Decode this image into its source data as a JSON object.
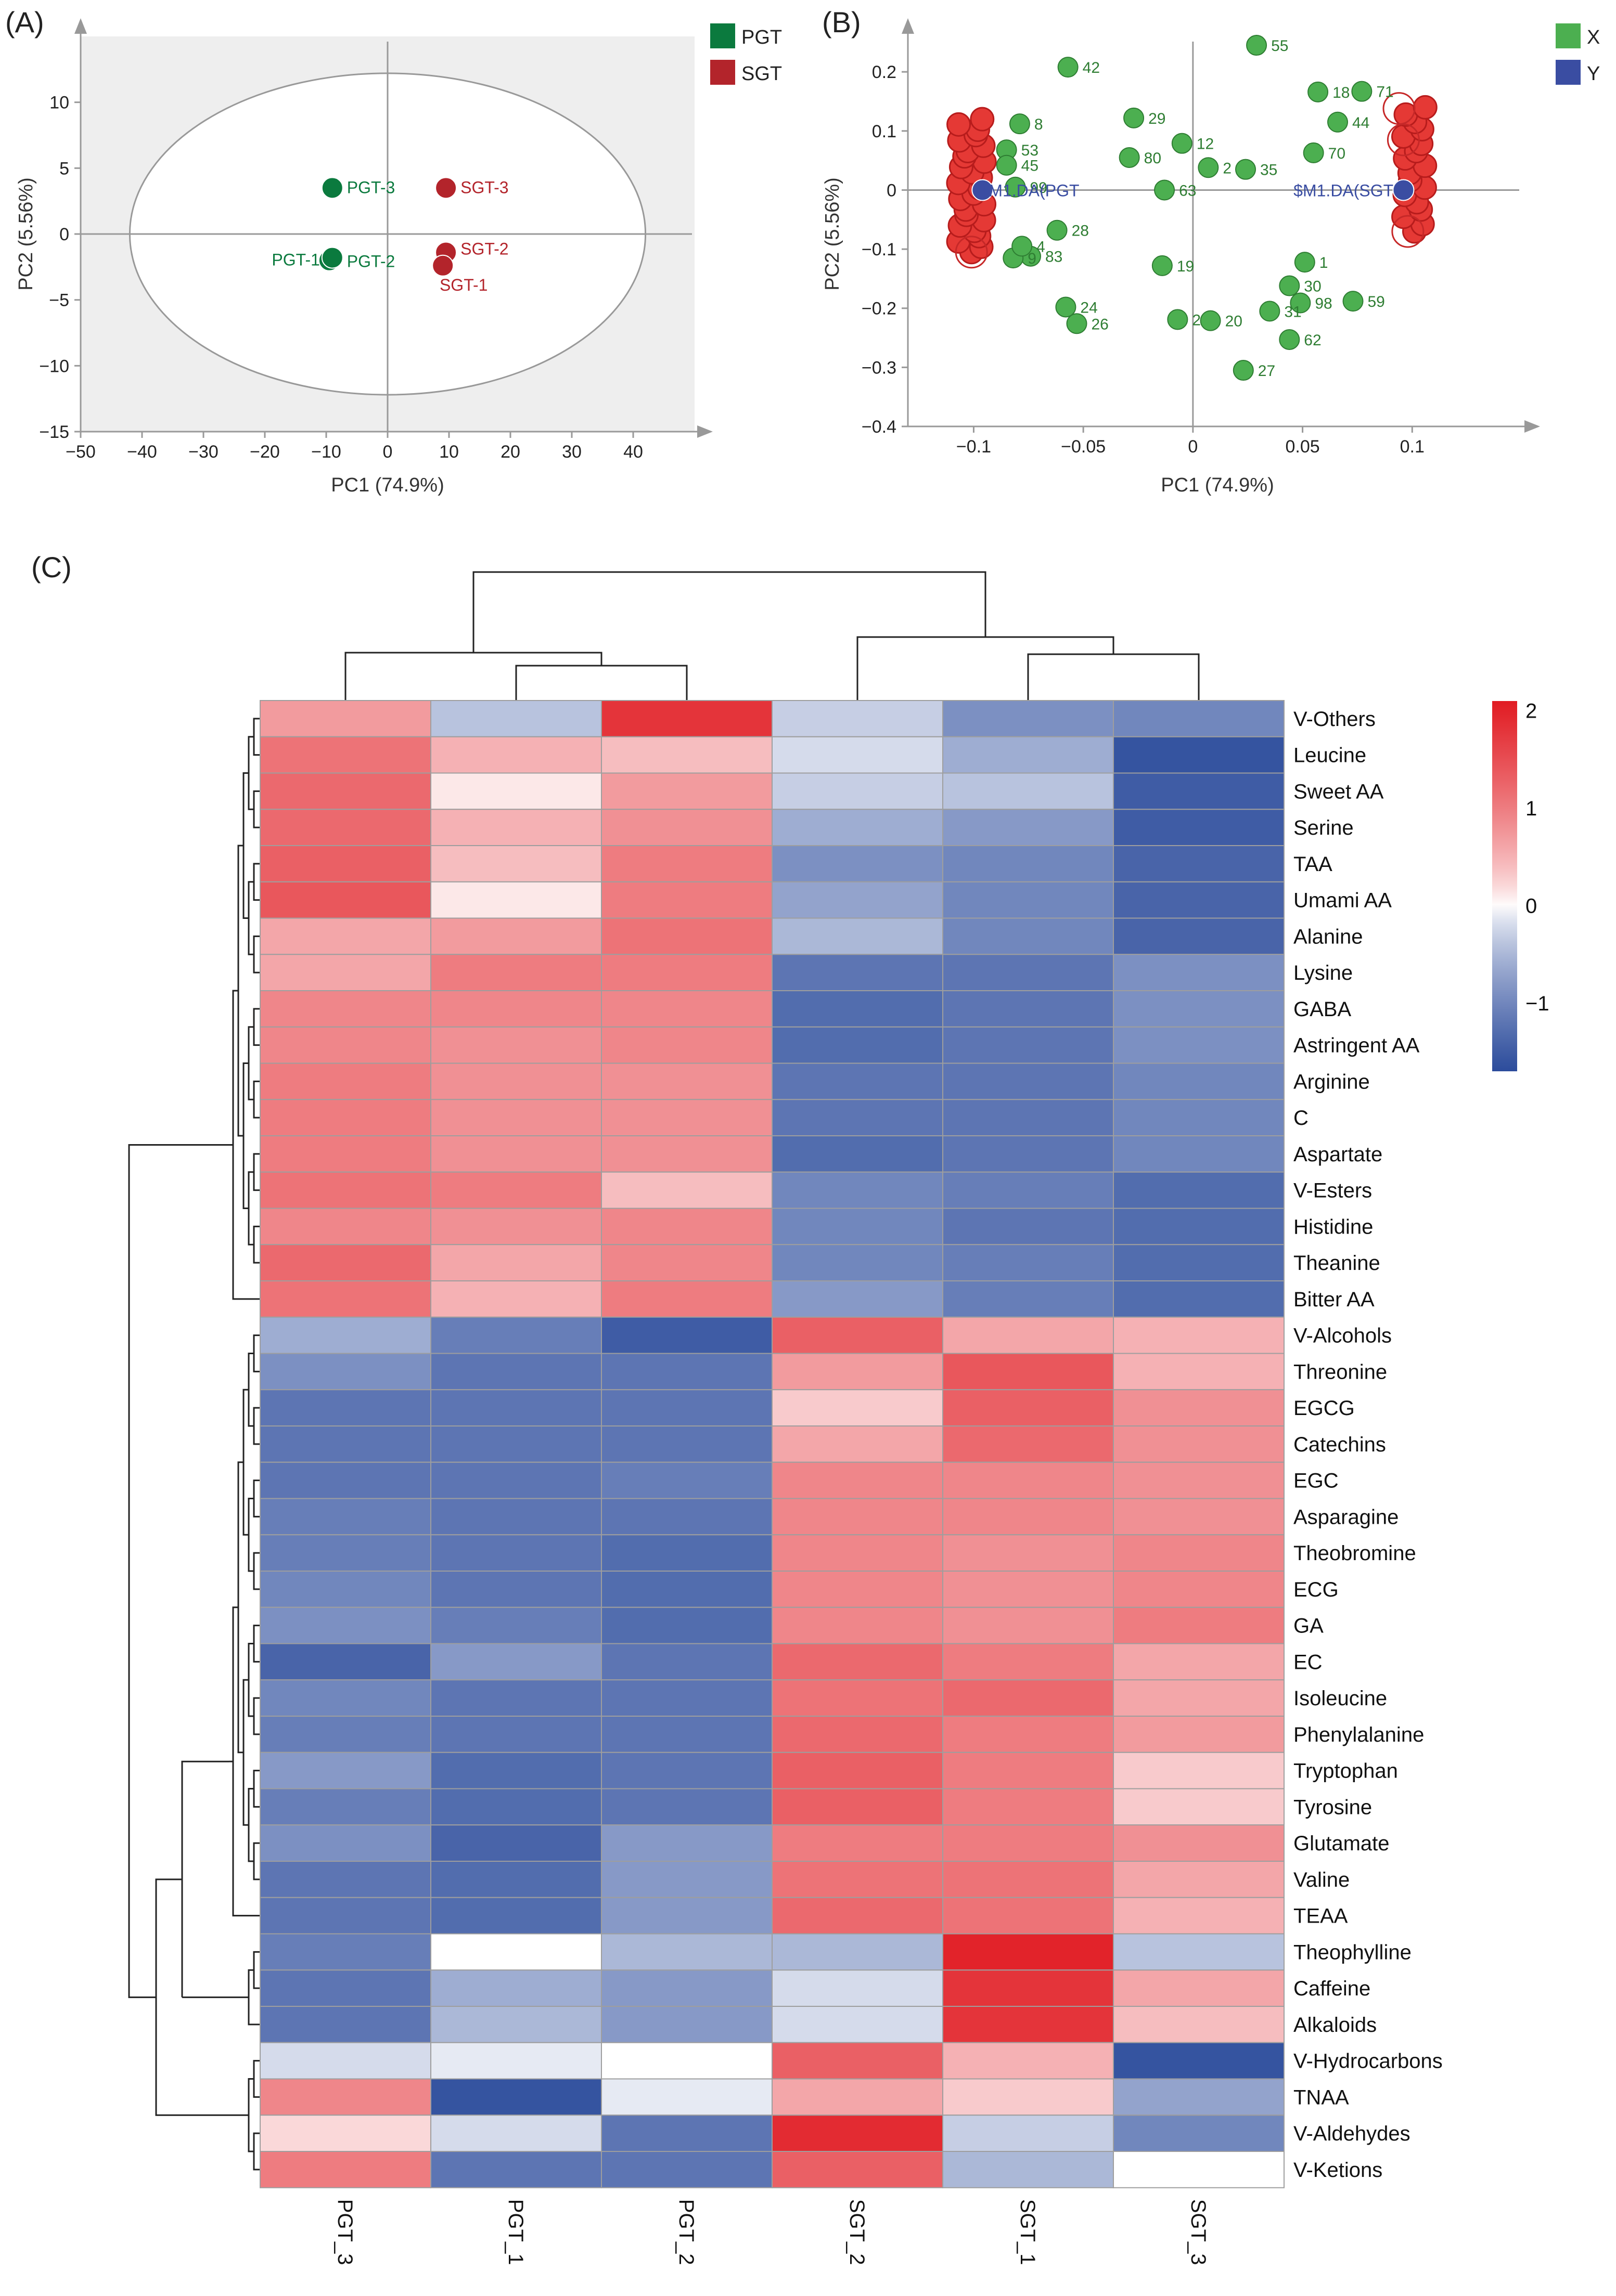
{
  "panel_labels": {
    "a": "(A)",
    "b": "(B)",
    "c": "(C)"
  },
  "colors": {
    "pgt": "#0b7a3e",
    "sgt": "#b3242b",
    "x_group": "#4caf50",
    "y_group": "#3a4da2",
    "axis": "#999999",
    "panel_bg": "#eeeeee",
    "heat_low": "#2c4c9c",
    "heat_mid": "#ffffff",
    "heat_high": "#e11b22"
  },
  "chart_data": [
    {
      "id": "A",
      "type": "scatter",
      "title": "",
      "xlabel": "PC1 (74.9%)",
      "ylabel": "PC2 (5.56%)",
      "xlim": [
        -50,
        50
      ],
      "ylim": [
        -15,
        15
      ],
      "xticks": [
        -50,
        -40,
        -30,
        -20,
        -10,
        0,
        10,
        20,
        30,
        40
      ],
      "yticks": [
        -15,
        -10,
        -5,
        0,
        5,
        10
      ],
      "grid": false,
      "legend": {
        "position": "right",
        "entries": [
          {
            "name": "PGT",
            "color": "#0b7a3e"
          },
          {
            "name": "SGT",
            "color": "#b3242b"
          }
        ]
      },
      "ellipse": {
        "cx": 0,
        "cy": 0,
        "rx": 42,
        "ry": 12.2
      },
      "points": [
        {
          "label": "PGT-3",
          "group": "PGT",
          "x": -9,
          "y": 3.5
        },
        {
          "label": "PGT-1",
          "group": "PGT",
          "x": -9.5,
          "y": -2
        },
        {
          "label": "PGT-2",
          "group": "PGT",
          "x": -9,
          "y": -1.8
        },
        {
          "label": "SGT-3",
          "group": "SGT",
          "x": 9.5,
          "y": 3.5
        },
        {
          "label": "SGT-2",
          "group": "SGT",
          "x": 9.5,
          "y": -1.4
        },
        {
          "label": "SGT-1",
          "group": "SGT",
          "x": 9,
          "y": -2.4
        }
      ]
    },
    {
      "id": "B",
      "type": "scatter",
      "title": "",
      "xlabel": "PC1 (74.9%)",
      "ylabel": "PC2 (5.56%)",
      "xlim": [
        -0.13,
        0.15
      ],
      "ylim": [
        -0.4,
        0.26
      ],
      "xticks": [
        -0.1,
        -0.05,
        0,
        0.05,
        0.1
      ],
      "xtick_labels": [
        "−0.1",
        "−0.05",
        "0",
        "0.05",
        "0.1"
      ],
      "yticks": [
        -0.4,
        -0.3,
        -0.2,
        -0.1,
        0,
        0.1,
        0.2
      ],
      "grid": false,
      "legend": {
        "position": "right",
        "entries": [
          {
            "name": "X",
            "color": "#4caf50"
          },
          {
            "name": "Y",
            "color": "#3a4da2"
          }
        ]
      },
      "annotations": [
        {
          "text": "$M1.DA(PGT",
          "x": -0.095,
          "y": 0
        },
        {
          "text": "$M1.DA(SGT",
          "x": 0.095,
          "y": 0
        }
      ],
      "y_points": [
        {
          "x": -0.096,
          "y": 0
        },
        {
          "x": 0.096,
          "y": 0
        }
      ],
      "x_points": [
        {
          "label": "55",
          "x": 0.029,
          "y": 0.245
        },
        {
          "label": "42",
          "x": -0.057,
          "y": 0.208
        },
        {
          "label": "18",
          "x": 0.057,
          "y": 0.166
        },
        {
          "label": "71",
          "x": 0.077,
          "y": 0.167
        },
        {
          "label": "29",
          "x": -0.027,
          "y": 0.122
        },
        {
          "label": "44",
          "x": 0.066,
          "y": 0.115
        },
        {
          "label": "12",
          "x": -0.005,
          "y": 0.079
        },
        {
          "label": "80",
          "x": -0.029,
          "y": 0.055
        },
        {
          "label": "70",
          "x": 0.055,
          "y": 0.063
        },
        {
          "label": "2",
          "x": 0.007,
          "y": 0.038
        },
        {
          "label": "35",
          "x": 0.024,
          "y": 0.035
        },
        {
          "label": "63",
          "x": -0.013,
          "y": 0
        },
        {
          "label": "28",
          "x": -0.062,
          "y": -0.068
        },
        {
          "label": "19",
          "x": -0.014,
          "y": -0.128
        },
        {
          "label": "1",
          "x": 0.051,
          "y": -0.122
        },
        {
          "label": "30",
          "x": 0.044,
          "y": -0.162
        },
        {
          "label": "98",
          "x": 0.049,
          "y": -0.191
        },
        {
          "label": "59",
          "x": 0.073,
          "y": -0.188
        },
        {
          "label": "24",
          "x": -0.058,
          "y": -0.198
        },
        {
          "label": "26",
          "x": -0.053,
          "y": -0.226
        },
        {
          "label": "23",
          "x": -0.007,
          "y": -0.219
        },
        {
          "label": "20",
          "x": 0.008,
          "y": -0.221
        },
        {
          "label": "31",
          "x": 0.035,
          "y": -0.205
        },
        {
          "label": "62",
          "x": 0.044,
          "y": -0.253
        },
        {
          "label": "27",
          "x": 0.023,
          "y": -0.305
        },
        {
          "label": "53",
          "x": -0.085,
          "y": 0.068
        },
        {
          "label": "45",
          "x": -0.085,
          "y": 0.042
        },
        {
          "label": "83",
          "x": -0.074,
          "y": -0.112
        },
        {
          "label": "9",
          "x": -0.082,
          "y": -0.115
        },
        {
          "label": "8",
          "x": -0.079,
          "y": 0.112
        },
        {
          "label": "4",
          "x": -0.078,
          "y": -0.095
        },
        {
          "label": "99",
          "x": -0.081,
          "y": 0.005
        }
      ]
    },
    {
      "id": "C",
      "type": "heatmap",
      "title": "",
      "columns": [
        "PGT_3",
        "PGT_1",
        "PGT_2",
        "SGT_2",
        "SGT_1",
        "SGT_3"
      ],
      "color_scale": {
        "min": -1.7,
        "max": 2.1,
        "ticks": [
          2,
          1,
          0,
          -1
        ]
      },
      "rows": [
        {
          "name": "V-Others",
          "values": [
            0.7,
            -0.4,
            1.8,
            -0.3,
            -0.9,
            -1.0
          ]
        },
        {
          "name": "Leucine",
          "values": [
            1.1,
            0.5,
            0.4,
            -0.2,
            -0.6,
            -1.6
          ]
        },
        {
          "name": "Sweet AA",
          "values": [
            1.2,
            0.1,
            0.7,
            -0.3,
            -0.4,
            -1.5
          ]
        },
        {
          "name": "Serine",
          "values": [
            1.2,
            0.5,
            0.8,
            -0.6,
            -0.8,
            -1.5
          ]
        },
        {
          "name": "TAA",
          "values": [
            1.3,
            0.4,
            1.0,
            -0.9,
            -1.0,
            -1.4
          ]
        },
        {
          "name": "Umami AA",
          "values": [
            1.4,
            0.1,
            1.0,
            -0.7,
            -1.0,
            -1.4
          ]
        },
        {
          "name": "Alanine",
          "values": [
            0.6,
            0.7,
            1.1,
            -0.5,
            -1.0,
            -1.4
          ]
        },
        {
          "name": "Lysine",
          "values": [
            0.6,
            1.0,
            1.0,
            -1.2,
            -1.2,
            -0.9
          ]
        },
        {
          "name": "GABA",
          "values": [
            0.9,
            0.9,
            0.9,
            -1.3,
            -1.2,
            -0.9
          ]
        },
        {
          "name": "Astringent AA",
          "values": [
            0.9,
            0.8,
            0.9,
            -1.3,
            -1.2,
            -0.9
          ]
        },
        {
          "name": "Arginine",
          "values": [
            1.0,
            0.8,
            0.8,
            -1.2,
            -1.2,
            -1.0
          ]
        },
        {
          "name": "C",
          "values": [
            1.0,
            0.8,
            0.8,
            -1.2,
            -1.2,
            -1.0
          ]
        },
        {
          "name": "Aspartate",
          "values": [
            1.0,
            0.8,
            0.8,
            -1.3,
            -1.2,
            -1.0
          ]
        },
        {
          "name": "V-Esters",
          "values": [
            1.1,
            1.0,
            0.4,
            -1.0,
            -1.1,
            -1.3
          ]
        },
        {
          "name": "Histidine",
          "values": [
            0.9,
            0.8,
            0.9,
            -1.0,
            -1.2,
            -1.3
          ]
        },
        {
          "name": "Theanine",
          "values": [
            1.2,
            0.6,
            0.9,
            -1.0,
            -1.1,
            -1.3
          ]
        },
        {
          "name": "Bitter AA",
          "values": [
            1.1,
            0.5,
            1.0,
            -0.8,
            -1.1,
            -1.3
          ]
        },
        {
          "name": "V-Alcohols",
          "values": [
            -0.6,
            -1.1,
            -1.5,
            1.3,
            0.6,
            0.5
          ]
        },
        {
          "name": "Threonine",
          "values": [
            -0.9,
            -1.2,
            -1.2,
            0.7,
            1.4,
            0.5
          ]
        },
        {
          "name": "EGCG",
          "values": [
            -1.2,
            -1.2,
            -1.2,
            0.3,
            1.3,
            0.8
          ]
        },
        {
          "name": "Catechins",
          "values": [
            -1.2,
            -1.2,
            -1.2,
            0.6,
            1.2,
            0.8
          ]
        },
        {
          "name": "EGC",
          "values": [
            -1.2,
            -1.2,
            -1.1,
            0.9,
            0.9,
            0.8
          ]
        },
        {
          "name": "Asparagine",
          "values": [
            -1.1,
            -1.2,
            -1.2,
            0.9,
            0.9,
            0.8
          ]
        },
        {
          "name": "Theobromine",
          "values": [
            -1.1,
            -1.2,
            -1.3,
            0.9,
            0.8,
            0.9
          ]
        },
        {
          "name": "ECG",
          "values": [
            -1.0,
            -1.2,
            -1.3,
            0.9,
            0.8,
            0.9
          ]
        },
        {
          "name": "GA",
          "values": [
            -0.9,
            -1.1,
            -1.3,
            0.9,
            0.8,
            1.0
          ]
        },
        {
          "name": "EC",
          "values": [
            -1.4,
            -0.8,
            -1.2,
            1.2,
            1.0,
            0.6
          ]
        },
        {
          "name": "Isoleucine",
          "values": [
            -1.0,
            -1.2,
            -1.2,
            1.1,
            1.2,
            0.6
          ]
        },
        {
          "name": "Phenylalanine",
          "values": [
            -1.1,
            -1.2,
            -1.2,
            1.2,
            1.0,
            0.7
          ]
        },
        {
          "name": "Tryptophan",
          "values": [
            -0.8,
            -1.3,
            -1.2,
            1.3,
            1.0,
            0.3
          ]
        },
        {
          "name": "Tyrosine",
          "values": [
            -1.1,
            -1.3,
            -1.2,
            1.3,
            1.0,
            0.3
          ]
        },
        {
          "name": "Glutamate",
          "values": [
            -0.9,
            -1.4,
            -0.8,
            1.0,
            1.0,
            0.8
          ]
        },
        {
          "name": "Valine",
          "values": [
            -1.2,
            -1.3,
            -0.8,
            1.1,
            1.1,
            0.6
          ]
        },
        {
          "name": "TEAA",
          "values": [
            -1.2,
            -1.3,
            -0.8,
            1.2,
            1.1,
            0.5
          ]
        },
        {
          "name": "Theophylline",
          "values": [
            -1.1,
            0.0,
            -0.5,
            -0.5,
            2.0,
            -0.4
          ]
        },
        {
          "name": "Caffeine",
          "values": [
            -1.2,
            -0.6,
            -0.8,
            -0.2,
            1.8,
            0.6
          ]
        },
        {
          "name": "Alkaloids",
          "values": [
            -1.2,
            -0.5,
            -0.8,
            -0.2,
            1.8,
            0.4
          ]
        },
        {
          "name": "V-Hydrocarbons",
          "values": [
            -0.2,
            -0.1,
            0.0,
            1.3,
            0.5,
            -1.6
          ]
        },
        {
          "name": "TNAA",
          "values": [
            0.9,
            -1.6,
            -0.1,
            0.6,
            0.3,
            -0.7
          ]
        },
        {
          "name": "V-Aldehydes",
          "values": [
            0.2,
            -0.2,
            -1.2,
            1.9,
            -0.3,
            -1.0
          ]
        },
        {
          "name": "V-Ketions",
          "values": [
            1.0,
            -1.2,
            -1.2,
            1.3,
            -0.5,
            0.0
          ]
        }
      ]
    }
  ]
}
